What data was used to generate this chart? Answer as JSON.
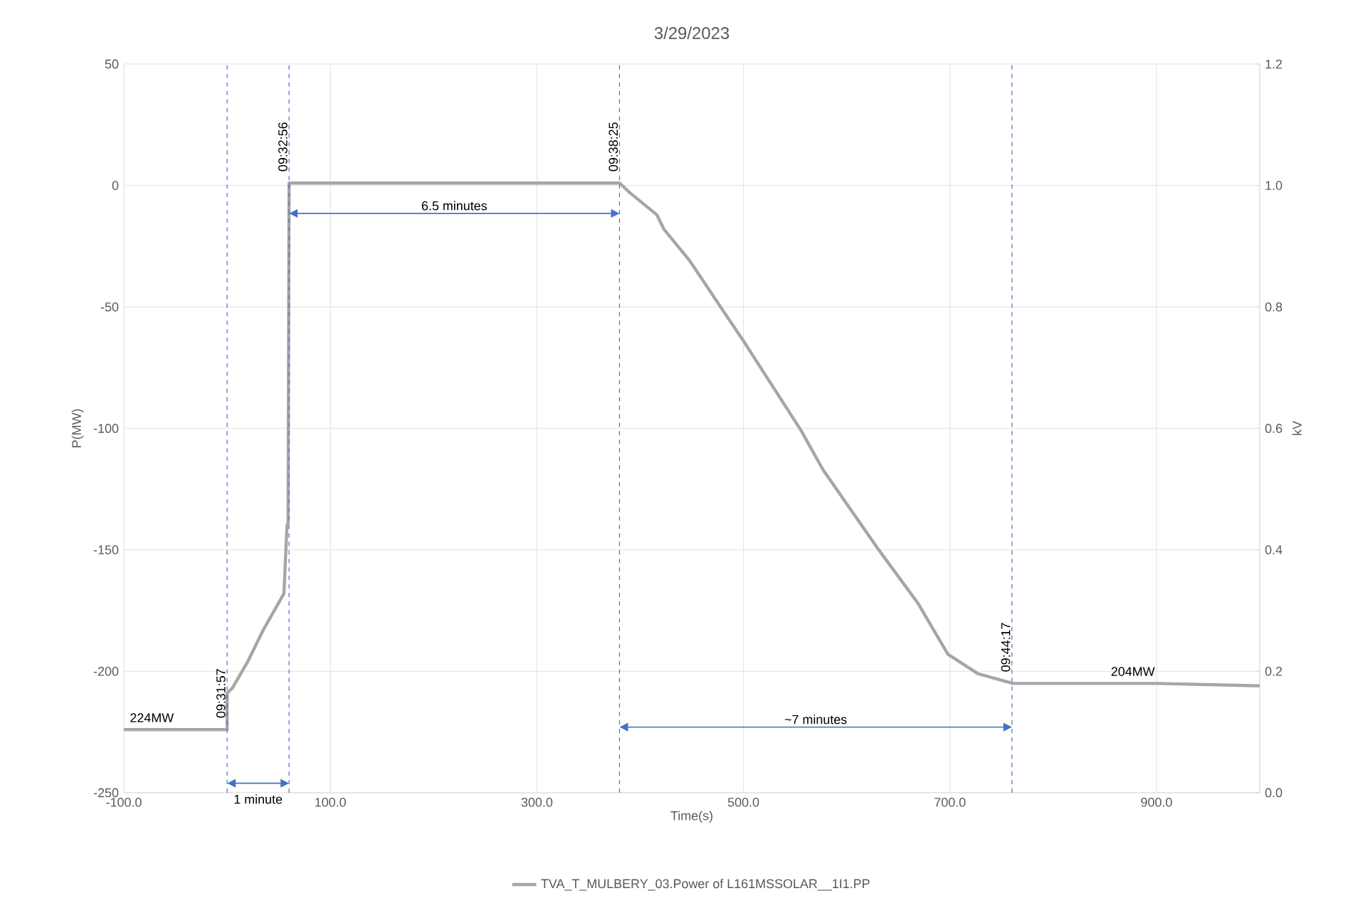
{
  "chart_data": {
    "type": "line",
    "title": "3/29/2023",
    "xlabel": "Time(s)",
    "ylabel": "P(MW)",
    "y2label": "kV",
    "xlim": [
      -100,
      1000
    ],
    "ylim": [
      -250,
      50
    ],
    "y2lim": [
      0,
      1.2
    ],
    "xticks": [
      {
        "value": -100,
        "label": "-100.0"
      },
      {
        "value": 100,
        "label": "100.0"
      },
      {
        "value": 300,
        "label": "300.0"
      },
      {
        "value": 500,
        "label": "500.0"
      },
      {
        "value": 700,
        "label": "700.0"
      },
      {
        "value": 900,
        "label": "900.0"
      }
    ],
    "yticks": [
      50,
      0,
      -50,
      -100,
      -150,
      -200,
      -250
    ],
    "y2ticks": [
      {
        "value": 0,
        "label": "0.0"
      },
      {
        "value": 0.2,
        "label": "0.2"
      },
      {
        "value": 0.4,
        "label": "0.4"
      },
      {
        "value": 0.6,
        "label": "0.6"
      },
      {
        "value": 0.8,
        "label": "0.8"
      },
      {
        "value": 1.0,
        "label": "1.0"
      },
      {
        "value": 1.2,
        "label": "1.2"
      }
    ],
    "grid": true,
    "legend": "bottom",
    "marker": "none",
    "line_style": "solid",
    "series": [
      {
        "name": "TVA_T_MULBERY_03.Power of L161MSSOLAR__1I1.PP",
        "color": "#a6a6a6",
        "x": [
          -100,
          -50,
          0,
          0,
          5,
          20,
          35,
          55,
          58,
          59,
          60,
          100,
          200,
          300,
          380,
          390,
          416,
          423,
          448,
          481,
          500,
          556,
          577,
          631,
          669,
          698,
          727,
          761,
          800,
          850,
          900,
          1000
        ],
        "values": [
          -224,
          -224,
          -224,
          -209,
          -207,
          -196,
          -183,
          -168,
          -140,
          -139,
          1,
          1,
          1,
          1,
          1,
          -3,
          -12,
          -18,
          -31,
          -52,
          -64,
          -101,
          -117,
          -150,
          -172,
          -193,
          -201,
          -205,
          -205,
          -205,
          -205,
          -206
        ]
      }
    ],
    "ref_lines": [
      {
        "axis": "x",
        "value": 0,
        "color": "#4472c4",
        "line_style": "dashed"
      },
      {
        "axis": "x",
        "value": 60,
        "color": "#4472c4",
        "line_style": "dashed"
      },
      {
        "axis": "x",
        "value": 380,
        "color": "#4472c4",
        "line_style": "dashed"
      },
      {
        "axis": "x",
        "value": 760,
        "color": "#4472c4",
        "line_style": "dashed"
      }
    ],
    "annotations": [
      {
        "text": "224MW",
        "x": -100,
        "y": -224
      },
      {
        "text": "204MW",
        "x": 850,
        "y": -205
      },
      "6.5 minutes",
      "~7  minutes",
      "1 minute",
      "09:31:57",
      "09:32:56",
      "09:38:25",
      "09:44:17"
    ]
  }
}
